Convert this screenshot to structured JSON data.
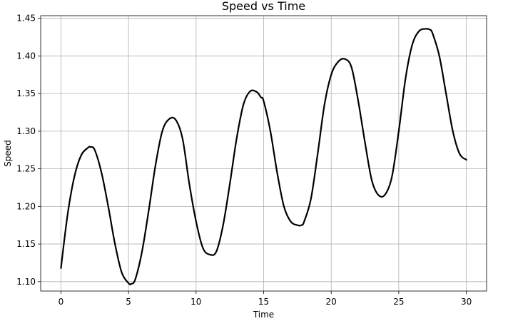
{
  "chart_data": {
    "type": "line",
    "title": "Speed vs Time",
    "xlabel": "Time",
    "ylabel": "Speed",
    "xlim": [
      -1.5,
      31.5
    ],
    "ylim": [
      1.0875,
      1.4535
    ],
    "xticks": [
      0,
      5,
      10,
      15,
      20,
      25,
      30
    ],
    "xtick_labels": [
      "0",
      "5",
      "10",
      "15",
      "20",
      "25",
      "30"
    ],
    "yticks": [
      1.1,
      1.15,
      1.2,
      1.25,
      1.3,
      1.35,
      1.4,
      1.45
    ],
    "ytick_labels": [
      "1.10",
      "1.15",
      "1.20",
      "1.25",
      "1.30",
      "1.35",
      "1.40",
      "1.45"
    ],
    "grid": true,
    "line_color": "#000000",
    "series": [
      {
        "x": [
          0,
          0.5,
          1.0,
          1.5,
          2.0,
          2.2,
          2.5,
          3.0,
          3.5,
          4.0,
          4.5,
          5.0,
          5.2,
          5.5,
          6.0,
          6.5,
          7.0,
          7.5,
          8.0,
          8.5,
          9.0,
          9.5,
          10.0,
          10.5,
          11.0,
          11.5,
          12.0,
          12.5,
          13.0,
          13.5,
          14.0,
          14.5,
          14.8,
          15.0,
          15.5,
          16.0,
          16.5,
          17.0,
          17.5,
          17.8,
          18.0,
          18.5,
          19.0,
          19.5,
          20.0,
          20.5,
          21.0,
          21.5,
          22.0,
          22.5,
          23.0,
          23.5,
          24.0,
          24.5,
          25.0,
          25.5,
          26.0,
          26.5,
          27.0,
          27.3,
          27.5,
          28.0,
          28.5,
          29.0,
          29.5,
          30.0
        ],
        "y": [
          1.118,
          1.19,
          1.24,
          1.268,
          1.278,
          1.279,
          1.275,
          1.245,
          1.2,
          1.15,
          1.112,
          1.098,
          1.097,
          1.103,
          1.14,
          1.195,
          1.255,
          1.3,
          1.316,
          1.315,
          1.29,
          1.23,
          1.18,
          1.145,
          1.136,
          1.14,
          1.175,
          1.23,
          1.29,
          1.335,
          1.353,
          1.352,
          1.345,
          1.34,
          1.3,
          1.245,
          1.2,
          1.18,
          1.175,
          1.175,
          1.18,
          1.21,
          1.27,
          1.335,
          1.375,
          1.392,
          1.396,
          1.385,
          1.34,
          1.285,
          1.235,
          1.215,
          1.216,
          1.24,
          1.3,
          1.37,
          1.415,
          1.433,
          1.436,
          1.435,
          1.43,
          1.4,
          1.35,
          1.3,
          1.27,
          1.262
        ]
      }
    ]
  }
}
